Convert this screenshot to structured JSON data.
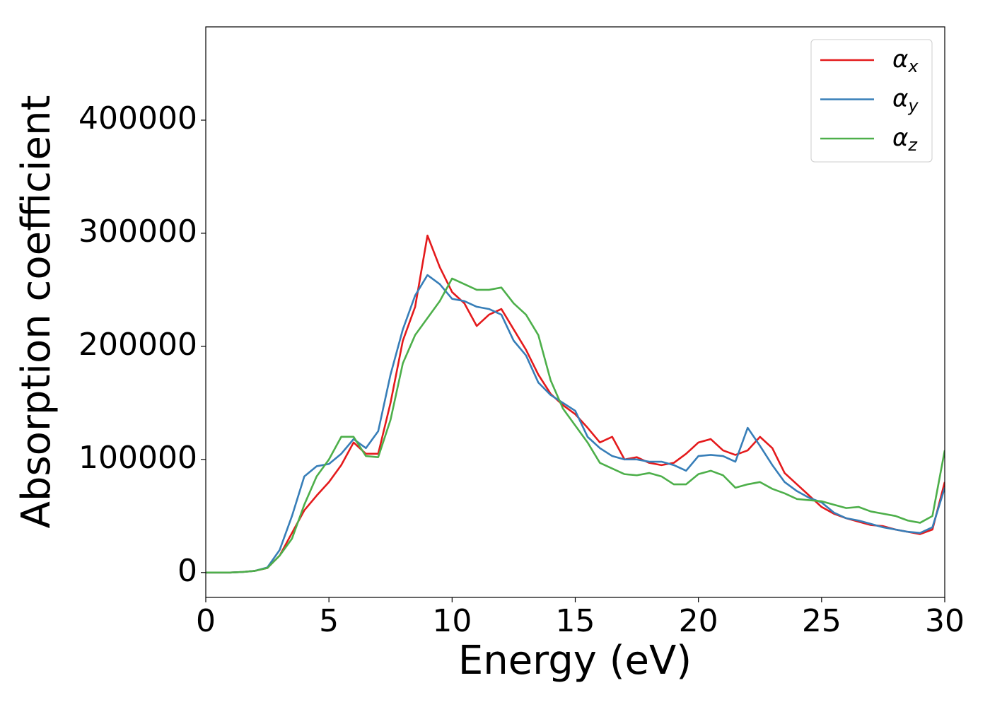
{
  "chart_data": {
    "type": "line",
    "x_label": "Energy (eV)",
    "y_label": "Absorption coefficient",
    "x": [
      0,
      0.5,
      1,
      1.5,
      2,
      2.5,
      3,
      3.5,
      4,
      4.5,
      5,
      5.5,
      6,
      6.5,
      7,
      7.5,
      8,
      8.5,
      9,
      9.5,
      10,
      10.5,
      11,
      11.5,
      12,
      12.5,
      13,
      13.5,
      14,
      14.5,
      15,
      15.5,
      16,
      16.5,
      17,
      17.5,
      18,
      18.5,
      19,
      19.5,
      20,
      20.5,
      21,
      21.5,
      22,
      22.5,
      23,
      23.5,
      24,
      24.5,
      25,
      25.5,
      26,
      26.5,
      27,
      27.5,
      28,
      28.5,
      29,
      29.5,
      30
    ],
    "series": [
      {
        "name": "αx",
        "color": "#e41a1c",
        "values": [
          0,
          0,
          0,
          500,
          1500,
          4000,
          15000,
          35000,
          55000,
          68000,
          80000,
          95000,
          115000,
          105000,
          105000,
          150000,
          205000,
          235000,
          298000,
          270000,
          248000,
          238000,
          218000,
          228000,
          233000,
          215000,
          197000,
          175000,
          158000,
          148000,
          140000,
          128000,
          115000,
          120000,
          100000,
          102000,
          97000,
          95000,
          97000,
          105000,
          115000,
          118000,
          108000,
          104000,
          108000,
          120000,
          110000,
          88000,
          78000,
          68000,
          58000,
          52000,
          48000,
          45000,
          42000,
          41000,
          38000,
          36000,
          34000,
          38000,
          80000
        ]
      },
      {
        "name": "αy",
        "color": "#377eb8",
        "values": [
          0,
          0,
          0,
          500,
          1500,
          4500,
          20000,
          50000,
          85000,
          94000,
          96000,
          105000,
          118000,
          110000,
          125000,
          175000,
          215000,
          245000,
          263000,
          255000,
          242000,
          240000,
          235000,
          233000,
          228000,
          205000,
          192000,
          168000,
          157000,
          150000,
          143000,
          120000,
          110000,
          103000,
          100000,
          100000,
          98000,
          98000,
          95000,
          90000,
          103000,
          104000,
          103000,
          98000,
          128000,
          112000,
          95000,
          80000,
          72000,
          66000,
          62000,
          53000,
          48000,
          46000,
          43000,
          40000,
          38000,
          36000,
          35000,
          40000,
          75000
        ]
      },
      {
        "name": "αz",
        "color": "#4daf4a",
        "values": [
          0,
          0,
          0,
          500,
          1500,
          4000,
          15000,
          30000,
          60000,
          85000,
          100000,
          120000,
          120000,
          103000,
          102000,
          135000,
          185000,
          210000,
          225000,
          240000,
          260000,
          255000,
          250000,
          250000,
          252000,
          238000,
          228000,
          210000,
          170000,
          145000,
          130000,
          115000,
          97000,
          92000,
          87000,
          86000,
          88000,
          85000,
          78000,
          78000,
          87000,
          90000,
          86000,
          75000,
          78000,
          80000,
          74000,
          70000,
          65000,
          64000,
          63000,
          60000,
          57000,
          58000,
          54000,
          52000,
          50000,
          46000,
          44000,
          50000,
          108000
        ]
      }
    ],
    "xlim": [
      0,
      30
    ],
    "ylim": [
      -22000,
      482500
    ],
    "xticks": [
      0,
      5,
      10,
      15,
      20,
      25,
      30
    ],
    "yticks": [
      0,
      100000,
      200000,
      300000,
      400000
    ],
    "grid": false,
    "legend": "upper right"
  }
}
